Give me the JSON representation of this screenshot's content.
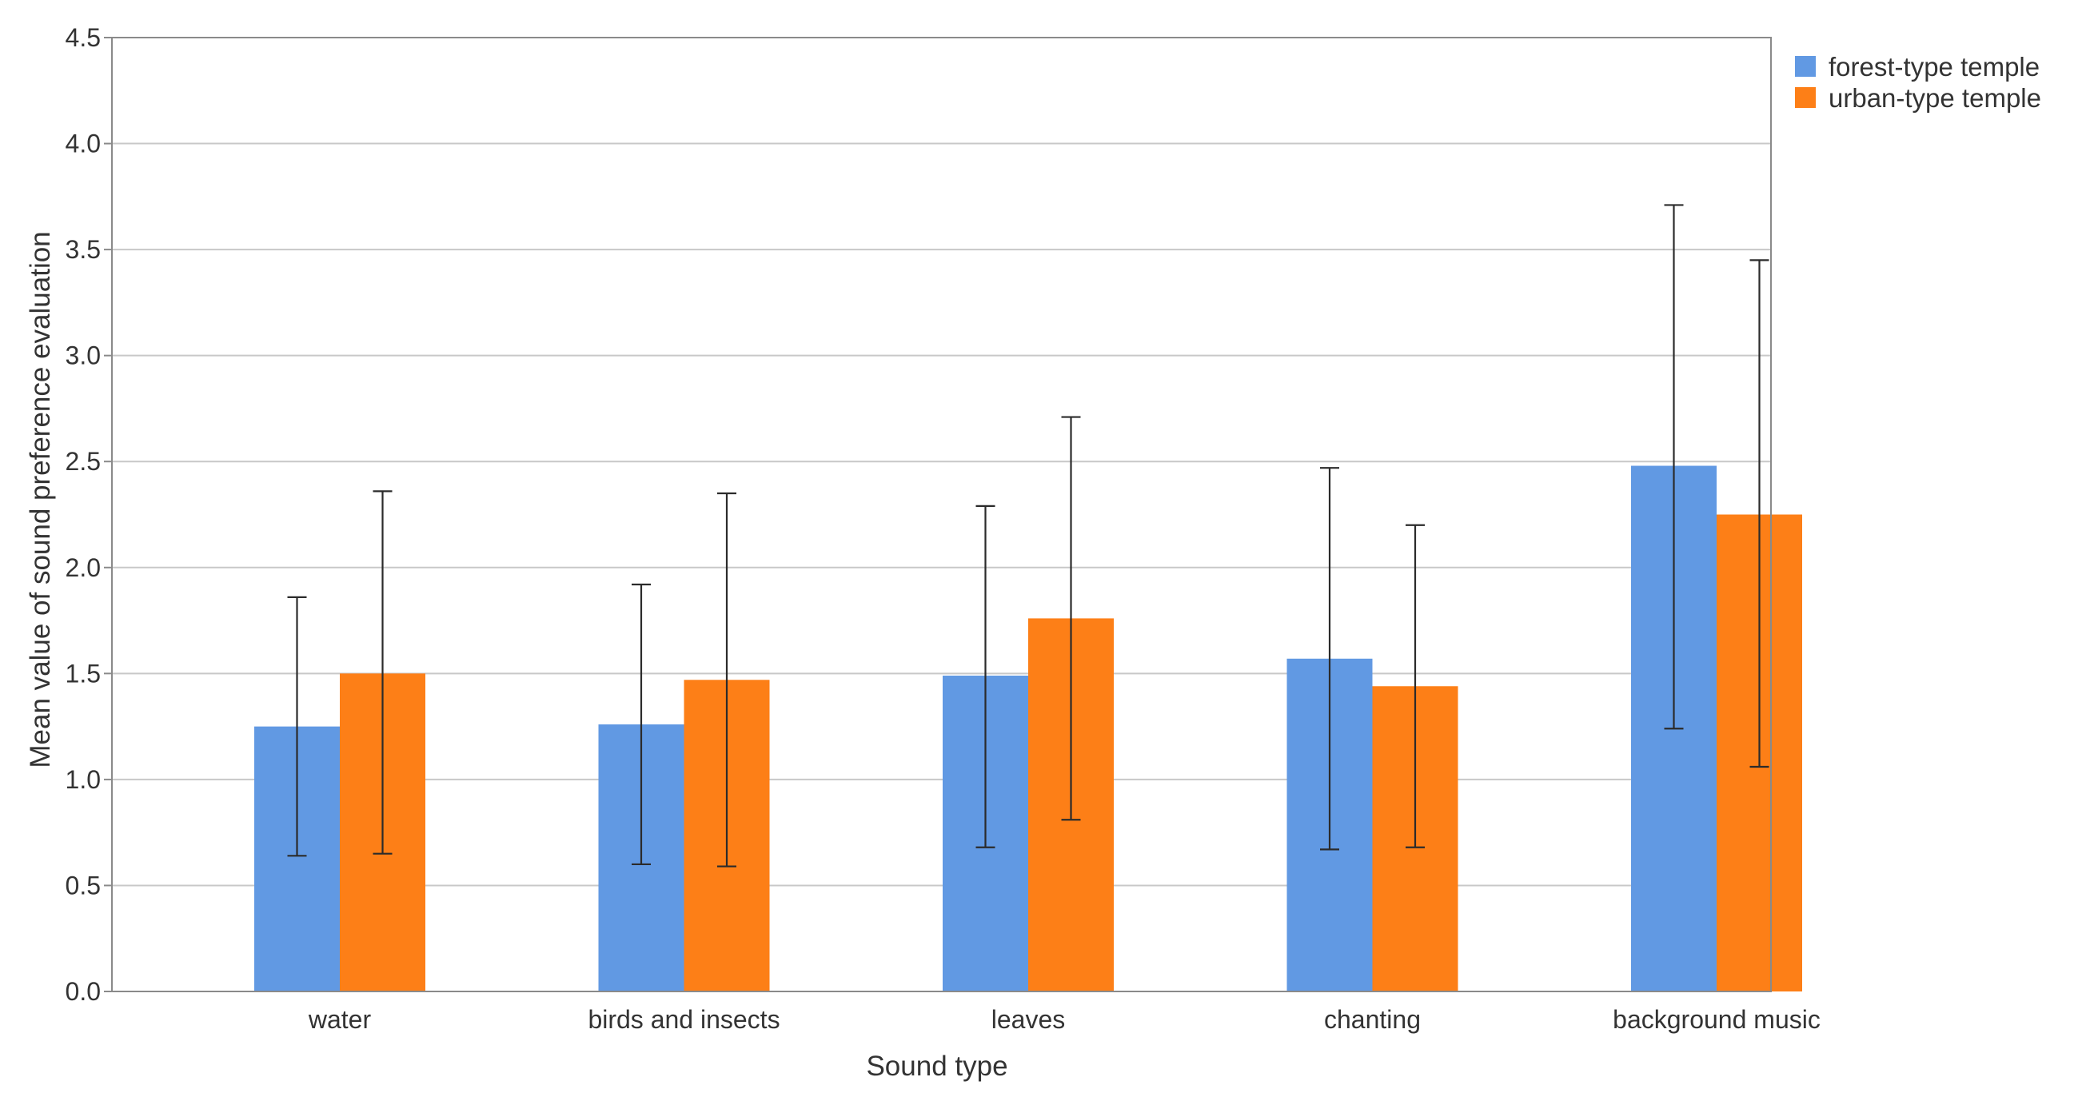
{
  "chart_data": {
    "type": "bar",
    "title": "",
    "xlabel": "Sound type",
    "ylabel": "Mean value of sound preference evaluation",
    "categories": [
      "water",
      "birds and insects",
      "leaves",
      "chanting",
      "background music"
    ],
    "series": [
      {
        "name": "forest-type temple",
        "color": "#6199e3",
        "values": [
          1.25,
          1.26,
          1.49,
          1.57,
          2.48
        ],
        "error_low": [
          0.64,
          0.6,
          0.68,
          0.67,
          1.24
        ],
        "error_high": [
          1.86,
          1.92,
          2.29,
          2.47,
          3.71
        ]
      },
      {
        "name": "urban-type temple",
        "color": "#fd7f17",
        "values": [
          1.5,
          1.47,
          1.76,
          1.44,
          2.25
        ],
        "error_low": [
          0.65,
          0.59,
          0.81,
          0.68,
          1.06
        ],
        "error_high": [
          2.36,
          2.35,
          2.71,
          2.2,
          3.45
        ]
      }
    ],
    "ylim": [
      0,
      4.5
    ],
    "yticks": [
      "0.0",
      "0.5",
      "1.0",
      "1.5",
      "2.0",
      "2.5",
      "3.0",
      "3.5",
      "4.0",
      "4.5"
    ],
    "grid": true,
    "legend_position": "top-right, outside plot"
  }
}
